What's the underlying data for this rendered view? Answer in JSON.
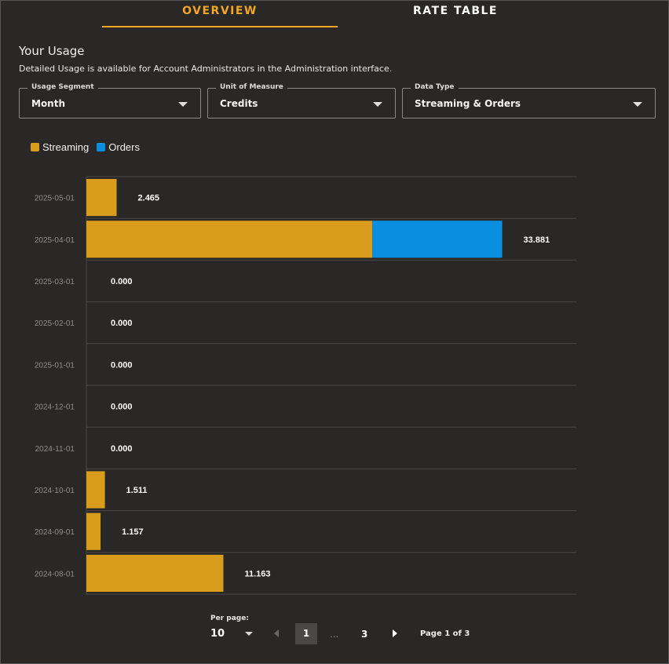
{
  "tabs": [
    {
      "label": "OVERVIEW",
      "active": true
    },
    {
      "label": "RATE TABLE",
      "active": false
    }
  ],
  "header": {
    "title": "Your Usage",
    "subtitle": "Detailed Usage is available for Account Administrators in the Administration interface."
  },
  "filters": {
    "usage_segment": {
      "label": "Usage Segment",
      "value": "Month"
    },
    "unit_of_measure": {
      "label": "Unit of Measure",
      "value": "Credits"
    },
    "data_type": {
      "label": "Data Type",
      "value": "Streaming & Orders"
    }
  },
  "colors": {
    "accent": "#f2a623",
    "streaming": "#d99c1c",
    "orders": "#0a8fe0"
  },
  "chart_data": {
    "type": "bar",
    "orientation": "horizontal",
    "stacked": true,
    "categories": [
      "2025-05-01",
      "2025-04-01",
      "2025-03-01",
      "2025-02-01",
      "2025-01-01",
      "2024-12-01",
      "2024-11-01",
      "2024-10-01",
      "2024-09-01",
      "2024-08-01"
    ],
    "series": [
      {
        "name": "Streaming",
        "color": "#d99c1c",
        "values": [
          2.465,
          23.3,
          0,
          0,
          0,
          0,
          0,
          1.511,
          1.157,
          11.163
        ]
      },
      {
        "name": "Orders",
        "color": "#0a8fe0",
        "values": [
          0,
          10.581,
          0,
          0,
          0,
          0,
          0,
          0,
          0,
          0
        ]
      }
    ],
    "totals": [
      "2.465",
      "33.881",
      "0.000",
      "0.000",
      "0.000",
      "0.000",
      "0.000",
      "1.511",
      "1.157",
      "11.163"
    ],
    "legend_position": "top-left",
    "grid": true
  },
  "pagination": {
    "per_page_label": "Per page:",
    "per_page_value": "10",
    "current_page": "1",
    "ellipsis": "...",
    "last_page": "3",
    "page_info": "Page 1 of 3"
  }
}
